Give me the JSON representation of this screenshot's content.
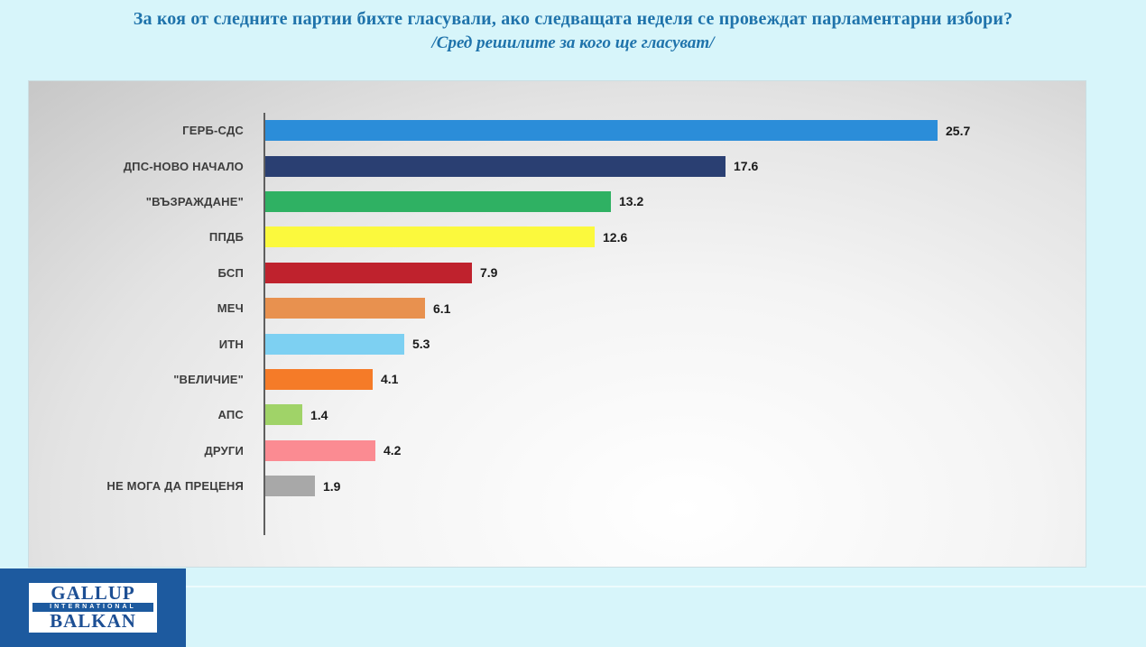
{
  "header": {
    "title": "За коя от следните партии бихте гласували, ако следващата неделя се провеждат парламентарни избори?",
    "subtitle": "/Сред решилите за кого ще гласуват/"
  },
  "logo": {
    "line1": "GALLUP",
    "line2": "INTERNATIONAL",
    "line3": "BALKAN"
  },
  "colors": {
    "page_background": "#d7f5fa",
    "title_text": "#1f73ab",
    "axis": "#5f5f5f",
    "label_text": "#3d3d3d",
    "value_text": "#1a1a1a",
    "logo_background": "#1d5a9f",
    "logo_text": "#1d4f94"
  },
  "chart_data": {
    "type": "bar",
    "orientation": "horizontal",
    "title": "За коя от следните партии бихте гласували, ако следващата неделя се провеждат парламентарни избори?",
    "subtitle": "/Сред решилите за кого ще гласуват/",
    "xlim": [
      0,
      26
    ],
    "grid": false,
    "legend": false,
    "categories": [
      "ГЕРБ-СДС",
      "ДПС-НОВО НАЧАЛО",
      "\"ВЪЗРАЖДАНЕ\"",
      "ППДБ",
      "БСП",
      "МЕЧ",
      "ИТН",
      "\"ВЕЛИЧИЕ\"",
      "АПС",
      "ДРУГИ",
      "НЕ МОГА ДА ПРЕЦЕНЯ"
    ],
    "values": [
      25.7,
      17.6,
      13.2,
      12.6,
      7.9,
      6.1,
      5.3,
      4.1,
      1.4,
      4.2,
      1.9
    ],
    "value_labels": [
      "25.7",
      "17.6",
      "13.2",
      "12.6",
      "7.9",
      "6.1",
      "5.3",
      "4.1",
      "1.4",
      "4.2",
      "1.9"
    ],
    "bar_colors": [
      "#2b8dd9",
      "#2a3f72",
      "#2fb163",
      "#fbf93d",
      "#bf222d",
      "#e8914f",
      "#7dd0f2",
      "#f57b28",
      "#a0d368",
      "#fb8b92",
      "#a8a8a8"
    ]
  }
}
